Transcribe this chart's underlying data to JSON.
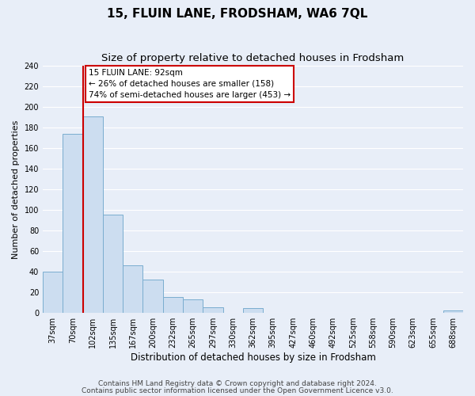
{
  "title": "15, FLUIN LANE, FRODSHAM, WA6 7QL",
  "subtitle": "Size of property relative to detached houses in Frodsham",
  "xlabel": "Distribution of detached houses by size in Frodsham",
  "ylabel": "Number of detached properties",
  "bar_labels": [
    "37sqm",
    "70sqm",
    "102sqm",
    "135sqm",
    "167sqm",
    "200sqm",
    "232sqm",
    "265sqm",
    "297sqm",
    "330sqm",
    "362sqm",
    "395sqm",
    "427sqm",
    "460sqm",
    "492sqm",
    "525sqm",
    "558sqm",
    "590sqm",
    "623sqm",
    "655sqm",
    "688sqm"
  ],
  "bar_values": [
    40,
    174,
    191,
    95,
    46,
    32,
    15,
    13,
    5,
    0,
    4,
    0,
    0,
    0,
    0,
    0,
    0,
    0,
    0,
    0,
    2
  ],
  "bar_color": "#ccddf0",
  "bar_edge_color": "#7aadcf",
  "vline_x_index": 2,
  "vline_color": "#cc0000",
  "annotation_title": "15 FLUIN LANE: 92sqm",
  "annotation_line1": "← 26% of detached houses are smaller (158)",
  "annotation_line2": "74% of semi-detached houses are larger (453) →",
  "annotation_box_color": "#ffffff",
  "annotation_box_edge": "#cc0000",
  "ylim": [
    0,
    240
  ],
  "yticks": [
    0,
    20,
    40,
    60,
    80,
    100,
    120,
    140,
    160,
    180,
    200,
    220,
    240
  ],
  "footer1": "Contains HM Land Registry data © Crown copyright and database right 2024.",
  "footer2": "Contains public sector information licensed under the Open Government Licence v3.0.",
  "background_color": "#e8eef8",
  "grid_color": "#ffffff",
  "title_fontsize": 11,
  "subtitle_fontsize": 9.5,
  "xlabel_fontsize": 8.5,
  "ylabel_fontsize": 8,
  "tick_fontsize": 7,
  "footer_fontsize": 6.5
}
